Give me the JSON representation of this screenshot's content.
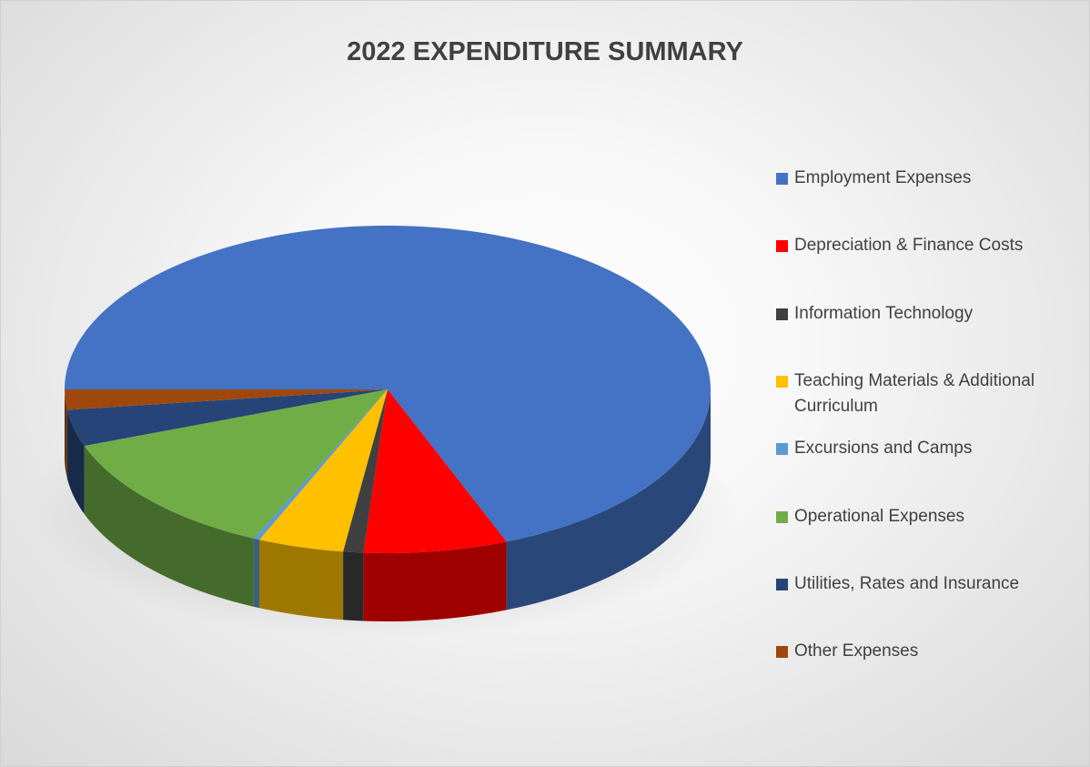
{
  "chart_data": {
    "type": "pie",
    "title": "2022 EXPENDITURE SUMMARY",
    "categories": [
      "Employment Expenses",
      "Depreciation & Finance Costs",
      "Information Technology",
      "Teaching Materials & Additional Curriculum",
      "Excursions and Camps",
      "Operational Expenses",
      "Utilities, Rates and Insurance",
      "Other Expenses"
    ],
    "values": [
      69,
      7.2,
      1,
      4.3,
      0.3,
      12.6,
      3.6,
      2
    ],
    "colors": [
      "#4472c4",
      "#ff0000",
      "#404040",
      "#ffc000",
      "#5b9bd5",
      "#70ad47",
      "#264478",
      "#9e480e"
    ],
    "legend": "right"
  }
}
